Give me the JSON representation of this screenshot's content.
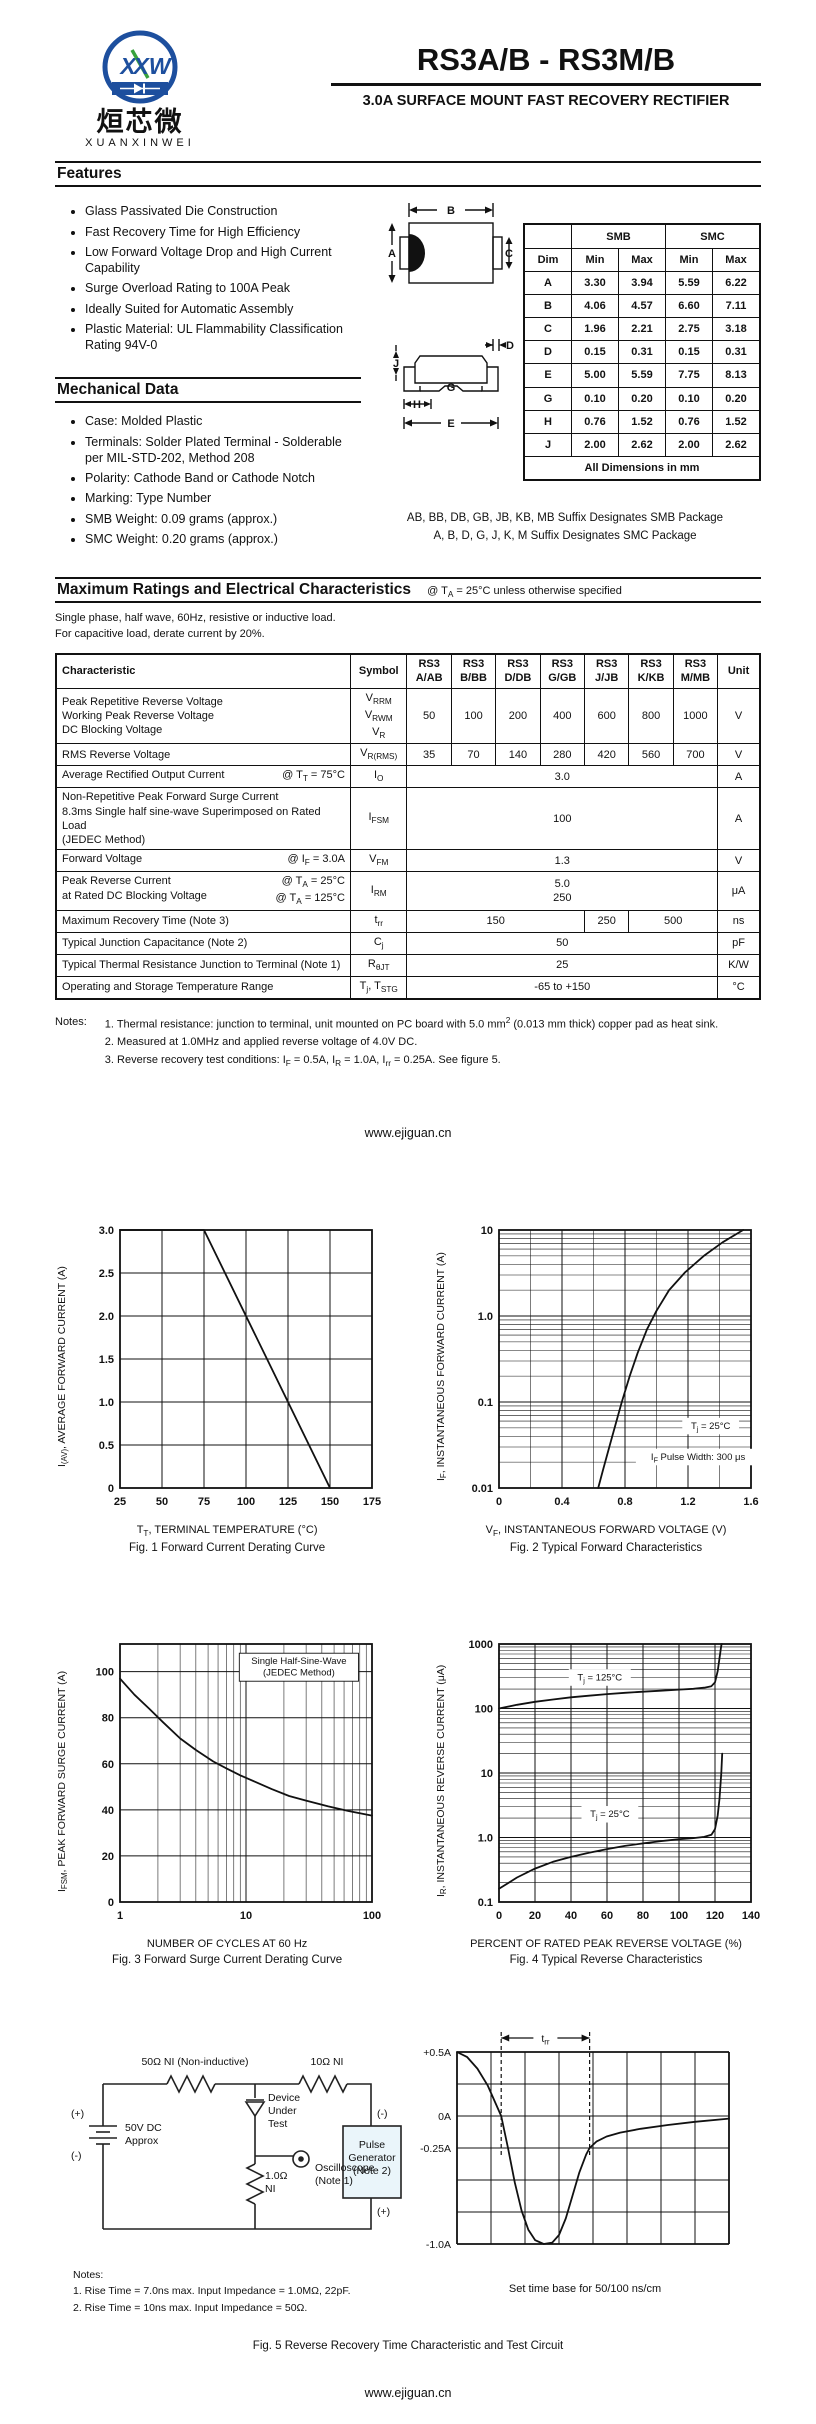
{
  "page": {
    "title": "RS3A/B - RS3M/B",
    "subtitle": "3.0A SURFACE MOUNT FAST RECOVERY RECTIFIER",
    "site_link": "www.ejiguan.cn"
  },
  "logo": {
    "monogram": "XW",
    "chinese": "烜芯微",
    "latin": "XUANXINWEI",
    "blue": "#1d4f9e",
    "green": "#37a23c"
  },
  "features": {
    "heading": "Features",
    "items": [
      "Glass Passivated Die Construction",
      "Fast Recovery Time for High Efficiency",
      "Low Forward Voltage Drop and High Current Capability",
      "Surge Overload Rating to 100A Peak",
      "Ideally Suited for Automatic Assembly",
      "Plastic Material: UL Flammability Classification Rating 94V-0"
    ]
  },
  "mechanical": {
    "heading": "Mechanical Data",
    "items": [
      "Case: Molded Plastic",
      "Terminals: Solder Plated Terminal - Solderable per MIL-STD-202, Method 208",
      "Polarity: Cathode Band or Cathode Notch",
      "Marking: Type Number",
      "SMB Weight: 0.09 grams (approx.)",
      "SMC Weight: 0.20 grams (approx.)"
    ]
  },
  "package": {
    "labels": {
      "a": "A",
      "b": "B",
      "c": "C",
      "d": "D",
      "e": "E",
      "g": "G",
      "h": "H",
      "j": "J"
    }
  },
  "dimensions": {
    "col_groups": [
      "SMB",
      "SMC"
    ],
    "headers": [
      "Dim",
      "Min",
      "Max",
      "Min",
      "Max"
    ],
    "rows": [
      [
        "A",
        "3.30",
        "3.94",
        "5.59",
        "6.22"
      ],
      [
        "B",
        "4.06",
        "4.57",
        "6.60",
        "7.11"
      ],
      [
        "C",
        "1.96",
        "2.21",
        "2.75",
        "3.18"
      ],
      [
        "D",
        "0.15",
        "0.31",
        "0.15",
        "0.31"
      ],
      [
        "E",
        "5.00",
        "5.59",
        "7.75",
        "8.13"
      ],
      [
        "G",
        "0.10",
        "0.20",
        "0.10",
        "0.20"
      ],
      [
        "H",
        "0.76",
        "1.52",
        "0.76",
        "1.52"
      ],
      [
        "J",
        "2.00",
        "2.62",
        "2.00",
        "2.62"
      ]
    ],
    "footer": "All Dimensions in mm",
    "suffix_note_1": "AB, BB, DB, GB, JB, KB, MB Suffix Designates SMB Package",
    "suffix_note_2": "A, B, D, G, J, K, M Suffix Designates SMC Package"
  },
  "ratings": {
    "heading": "Maximum Ratings and Electrical Characteristics",
    "condition": "@ T~A~ = 25°C unless otherwise specified",
    "intro_1": "Single phase, half wave, 60Hz, resistive or inductive load.",
    "intro_2": "For capacitive load, derate current by 20%.",
    "headers": [
      "Characteristic",
      "Symbol",
      "RS3\nA/AB",
      "RS3\nB/BB",
      "RS3\nD/DB",
      "RS3\nG/GB",
      "RS3\nJ/JB",
      "RS3\nK/KB",
      "RS3\nM/MB",
      "Unit"
    ],
    "rows": [
      {
        "char": "Peak Repetitive Reverse Voltage\nWorking Peak Reverse Voltage\nDC Blocking Voltage",
        "cond": "",
        "symbol": "V~RRM~\nV~RWM~\nV~R~",
        "values": [
          {
            "t": "50"
          },
          {
            "t": "100"
          },
          {
            "t": "200"
          },
          {
            "t": "400"
          },
          {
            "t": "600"
          },
          {
            "t": "800"
          },
          {
            "t": "1000"
          }
        ],
        "unit": "V"
      },
      {
        "char": "RMS Reverse Voltage",
        "cond": "",
        "symbol": "V~R(RMS)~",
        "values": [
          {
            "t": "35"
          },
          {
            "t": "70"
          },
          {
            "t": "140"
          },
          {
            "t": "280"
          },
          {
            "t": "420"
          },
          {
            "t": "560"
          },
          {
            "t": "700"
          }
        ],
        "unit": "V"
      },
      {
        "char": "Average Rectified Output Current",
        "cond": "@ T~T~ = 75°C",
        "symbol": "I~O~",
        "values": [
          {
            "t": "3.0",
            "span": 7
          }
        ],
        "unit": "A"
      },
      {
        "char": "Non-Repetitive Peak Forward Surge Current\n8.3ms Single half sine-wave Superimposed on Rated Load\n(JEDEC Method)",
        "cond": "",
        "symbol": "I~FSM~",
        "values": [
          {
            "t": "100",
            "span": 7
          }
        ],
        "unit": "A"
      },
      {
        "char": "Forward Voltage",
        "cond": "@ I~F~ = 3.0A",
        "symbol": "V~FM~",
        "values": [
          {
            "t": "1.3",
            "span": 7
          }
        ],
        "unit": "V"
      },
      {
        "char": "Peak Reverse Current\nat Rated DC Blocking Voltage",
        "cond": "@ T~A~ =   25°C\n@ T~A~ = 125°C",
        "symbol": "I~RM~",
        "values": [
          {
            "t": "5.0\n250",
            "span": 7
          }
        ],
        "unit": "μA"
      },
      {
        "char": "Maximum Recovery Time (Note 3)",
        "cond": "",
        "symbol": "t~rr~",
        "values": [
          {
            "t": "150",
            "span": 4
          },
          {
            "t": "250"
          },
          {
            "t": "500",
            "span": 2
          }
        ],
        "unit": "ns"
      },
      {
        "char": "Typical Junction Capacitance (Note 2)",
        "cond": "",
        "symbol": "C~j~",
        "values": [
          {
            "t": "50",
            "span": 7
          }
        ],
        "unit": "pF"
      },
      {
        "char": "Typical Thermal Resistance Junction to Terminal (Note 1)",
        "cond": "",
        "symbol": "R~θJT~",
        "values": [
          {
            "t": "25",
            "span": 7
          }
        ],
        "unit": "K/W"
      },
      {
        "char": "Operating and Storage Temperature Range",
        "cond": "",
        "symbol": "T~j~, T~STG~",
        "values": [
          {
            "t": "-65 to +150",
            "span": 7
          }
        ],
        "unit": "°C"
      }
    ],
    "notes_label": "Notes:",
    "notes": [
      "1.   Thermal resistance: junction to terminal, unit mounted on PC board with 5.0 mm^2^ (0.013 mm thick) copper pad as heat sink.",
      "2.   Measured at 1.0MHz and applied reverse voltage of 4.0V DC.",
      "3.   Reverse recovery test conditions: I~F~ = 0.5A, I~R~ = 1.0A, I~rr~ = 0.25A. See figure 5."
    ]
  },
  "chart_data": [
    {
      "type": "line",
      "title": "Fig. 1  Forward Current Derating Curve",
      "ylabel": "I~(AV)~, AVERAGE FORWARD CURRENT (A)",
      "xlabel": "T~T~, TERMINAL TEMPERATURE (°C)",
      "caption": "Fig. 1  Forward Current Derating Curve",
      "x": {
        "type": "linear",
        "min": 25,
        "max": 175,
        "step": 25,
        "ticks": [
          25,
          50,
          75,
          100,
          125,
          150,
          175
        ],
        "tick_labels": [
          "25",
          "50",
          "75",
          "100",
          "125",
          "150",
          "175"
        ]
      },
      "y": {
        "type": "linear",
        "min": 0,
        "max": 3,
        "step": 0.5,
        "ticks": [
          0,
          0.5,
          1,
          1.5,
          2,
          2.5,
          3
        ],
        "tick_labels": [
          "0",
          "0.5",
          "1.0",
          "1.5",
          "2.0",
          "2.5",
          "3.0"
        ]
      },
      "series": [
        {
          "name": "derating",
          "points": [
            [
              25,
              3
            ],
            [
              75,
              3
            ],
            [
              150,
              0
            ]
          ]
        }
      ],
      "annotations": []
    },
    {
      "type": "line",
      "title": "Fig. 2  Typical Forward Characteristics",
      "ylabel": "I~F~, INSTANTANEOUS FORWARD CURRENT (A)",
      "xlabel": "V~F~, INSTANTANEOUS FORWARD VOLTAGE (V)",
      "caption": "Fig. 2  Typical Forward Characteristics",
      "x": {
        "type": "linear",
        "min": 0,
        "max": 1.6,
        "step": 0.2,
        "ticks": [
          0,
          0.4,
          0.8,
          1.2,
          1.6
        ],
        "tick_labels": [
          "0",
          "0.4",
          "0.8",
          "1.2",
          "1.6"
        ]
      },
      "y": {
        "type": "log",
        "min": 0.01,
        "max": 10,
        "ticks": [
          0.01,
          0.1,
          1,
          10
        ],
        "tick_labels": [
          "0.01",
          "0.1",
          "1.0",
          "10"
        ]
      },
      "series": [
        {
          "name": "vf_25c",
          "points": [
            [
              0.63,
              0.01
            ],
            [
              0.66,
              0.016
            ],
            [
              0.7,
              0.03
            ],
            [
              0.74,
              0.055
            ],
            [
              0.78,
              0.1
            ],
            [
              0.83,
              0.2
            ],
            [
              0.88,
              0.37
            ],
            [
              0.94,
              0.7
            ],
            [
              1.0,
              1.15
            ],
            [
              1.08,
              2.0
            ],
            [
              1.18,
              3.2
            ],
            [
              1.3,
              5.0
            ],
            [
              1.42,
              7.2
            ],
            [
              1.55,
              10
            ]
          ]
        }
      ],
      "annotations": [
        {
          "fx": 0.84,
          "fy": 0.76,
          "text": "T~j~ = 25°C",
          "bg": true
        },
        {
          "fx": 0.79,
          "fy": 0.88,
          "text": "I~F~ Pulse Width: 300 μs",
          "bg": true
        }
      ]
    },
    {
      "type": "line",
      "title": "Fig. 3  Forward Surge Current Derating Curve",
      "ylabel": "I~FSM~, PEAK FORWARD SURGE CURRENT (A)",
      "xlabel": "NUMBER OF CYCLES AT 60 Hz",
      "caption": "Fig. 3  Forward Surge Current Derating Curve",
      "x": {
        "type": "log",
        "min": 1,
        "max": 100,
        "ticks": [
          1,
          10,
          100
        ],
        "tick_labels": [
          "1",
          "10",
          "100"
        ]
      },
      "y": {
        "type": "linear",
        "min": 0,
        "max": 112,
        "step": 20,
        "ticks": [
          0,
          20,
          40,
          60,
          80,
          100
        ],
        "tick_labels": [
          "0",
          "20",
          "40",
          "60",
          "80",
          "100"
        ]
      },
      "series": [
        {
          "name": "surge",
          "points": [
            [
              1,
              97
            ],
            [
              1.3,
              90
            ],
            [
              1.7,
              84
            ],
            [
              2.2,
              78
            ],
            [
              3,
              71
            ],
            [
              4,
              66
            ],
            [
              5.5,
              61
            ],
            [
              7,
              58
            ],
            [
              9,
              55
            ],
            [
              12,
              52
            ],
            [
              16,
              49
            ],
            [
              22,
              46
            ],
            [
              30,
              44
            ],
            [
              45,
              41.5
            ],
            [
              65,
              39.5
            ],
            [
              100,
              37.5
            ]
          ]
        }
      ],
      "annotations": [
        {
          "fx": 0.71,
          "fy": 0.09,
          "text": "Single Half-Sine-Wave\n(JEDEC Method)",
          "bg": true,
          "box": true
        }
      ]
    },
    {
      "type": "line",
      "title": "Fig. 4  Typical Reverse Characteristics",
      "ylabel": "I~R~, INSTANTANEOUS REVERSE CURRENT (μA)",
      "xlabel": "PERCENT OF RATED PEAK REVERSE VOLTAGE (%)",
      "caption": "Fig. 4  Typical Reverse Characteristics",
      "x": {
        "type": "linear",
        "min": 0,
        "max": 140,
        "step": 20,
        "ticks": [
          0,
          20,
          40,
          60,
          80,
          100,
          120,
          140
        ],
        "tick_labels": [
          "0",
          "20",
          "40",
          "60",
          "80",
          "100",
          "120",
          "140"
        ]
      },
      "y": {
        "type": "log",
        "min": 0.1,
        "max": 1000,
        "ticks": [
          0.1,
          1,
          10,
          100,
          1000
        ],
        "tick_labels": [
          "0.1",
          "1.0",
          "10",
          "100",
          "1000"
        ]
      },
      "series": [
        {
          "name": "tj_125c",
          "points": [
            [
              0,
              100
            ],
            [
              10,
              114
            ],
            [
              20,
              127
            ],
            [
              30,
              138
            ],
            [
              40,
              149
            ],
            [
              50,
              158
            ],
            [
              60,
              167
            ],
            [
              70,
              175
            ],
            [
              80,
              182
            ],
            [
              90,
              189
            ],
            [
              100,
              196
            ],
            [
              108,
              202
            ],
            [
              114,
              210
            ],
            [
              118,
              222
            ],
            [
              120,
              255
            ],
            [
              121.5,
              380
            ],
            [
              122.5,
              600
            ],
            [
              123.5,
              950
            ],
            [
              123.8,
              1000
            ]
          ]
        },
        {
          "name": "tj_25c",
          "points": [
            [
              0,
              0.16
            ],
            [
              10,
              0.24
            ],
            [
              20,
              0.33
            ],
            [
              30,
              0.42
            ],
            [
              40,
              0.5
            ],
            [
              50,
              0.58
            ],
            [
              60,
              0.66
            ],
            [
              70,
              0.74
            ],
            [
              80,
              0.81
            ],
            [
              90,
              0.88
            ],
            [
              100,
              0.94
            ],
            [
              108,
              0.98
            ],
            [
              114,
              1.02
            ],
            [
              118,
              1.1
            ],
            [
              120,
              1.35
            ],
            [
              121.5,
              2.2
            ],
            [
              122.5,
              4
            ],
            [
              123.5,
              10
            ],
            [
              124,
              20
            ]
          ]
        }
      ],
      "annotations": [
        {
          "fx": 0.4,
          "fy": 0.13,
          "text": "T~j~ = 125°C",
          "bg": true
        },
        {
          "fx": 0.44,
          "fy": 0.66,
          "text": "T~j~ = 25°C",
          "bg": true
        }
      ]
    }
  ],
  "fig5": {
    "circuit": {
      "r1_label": "50Ω NI (Non-inductive)",
      "r2_label": "10Ω NI",
      "dut_label": "Device\nUnder\nTest",
      "battery_plus": "(+)",
      "battery_minus": "(-)",
      "battery_label": "50V DC\nApprox",
      "r3_label": "1.0Ω\nNI",
      "scope_label": "Oscilloscope\n(Note 1)",
      "pulse_gen_label": "Pulse\nGenerator\n(Note 2)",
      "pg_minus": "(-)",
      "pg_plus": "(+)"
    },
    "notes_label": "Notes:",
    "notes": [
      "1. Rise Time = 7.0ns max. Input Impedance = 1.0MΩ, 22pF.",
      "2. Rise Time = 10ns max. Input Impedance = 50Ω."
    ],
    "waveform": {
      "y_labels": [
        {
          "v": 0.5,
          "t": "+0.5A"
        },
        {
          "v": 0,
          "t": "0A"
        },
        {
          "v": -0.25,
          "t": "-0.25A"
        },
        {
          "v": -1,
          "t": "-1.0A"
        }
      ],
      "dash_x": [
        1.3,
        3.9
      ],
      "trr_label": "t~rr~",
      "points": [
        [
          0,
          0.5
        ],
        [
          0.3,
          0.46
        ],
        [
          0.6,
          0.37
        ],
        [
          0.9,
          0.24
        ],
        [
          1.1,
          0.12
        ],
        [
          1.3,
          0
        ],
        [
          1.5,
          -0.25
        ],
        [
          1.7,
          -0.52
        ],
        [
          1.9,
          -0.74
        ],
        [
          2.1,
          -0.89
        ],
        [
          2.3,
          -0.97
        ],
        [
          2.55,
          -1.0
        ],
        [
          2.8,
          -0.99
        ],
        [
          3.0,
          -0.93
        ],
        [
          3.2,
          -0.8
        ],
        [
          3.4,
          -0.62
        ],
        [
          3.6,
          -0.44
        ],
        [
          3.8,
          -0.3
        ],
        [
          3.9,
          -0.25
        ],
        [
          4.1,
          -0.2
        ],
        [
          4.4,
          -0.16
        ],
        [
          4.8,
          -0.13
        ],
        [
          5.4,
          -0.1
        ],
        [
          6.2,
          -0.07
        ],
        [
          7.0,
          -0.045
        ],
        [
          8.0,
          -0.02
        ]
      ],
      "caption": "Set time base for 50/100 ns/cm"
    },
    "caption": "Fig. 5  Reverse Recovery Time Characteristic and Test Circuit"
  }
}
